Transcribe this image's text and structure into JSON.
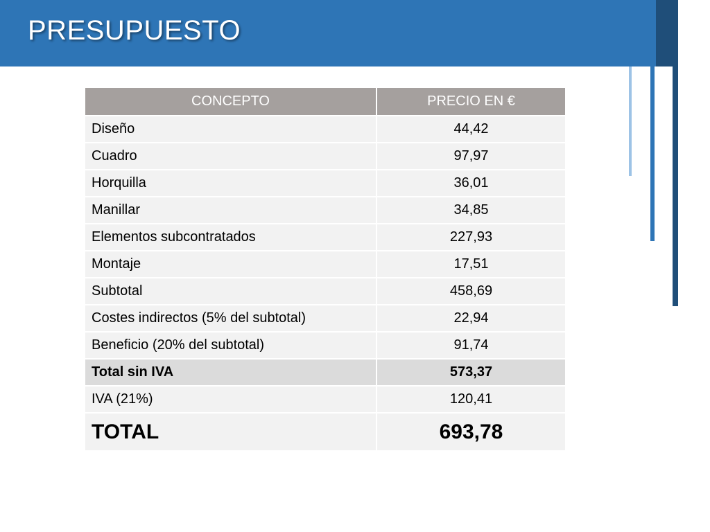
{
  "slide": {
    "title": "PRESUPUESTO",
    "colors": {
      "header": "#2e75b6",
      "accent_dark": "#1f4e79",
      "accent_light": "#9dc3e6",
      "table_header": "#a5a09e",
      "row_bg": "#f2f2f2",
      "row_highlight_bg": "#dbdbdb"
    }
  },
  "table": {
    "headers": {
      "concept": "CONCEPTO",
      "price": "PRECIO EN €"
    },
    "rows": [
      {
        "concept": "Diseño",
        "price": "44,42"
      },
      {
        "concept": "Cuadro",
        "price": "97,97"
      },
      {
        "concept": "Horquilla",
        "price": "36,01"
      },
      {
        "concept": "Manillar",
        "price": "34,85"
      },
      {
        "concept": "Elementos subcontratados",
        "price": "227,93"
      },
      {
        "concept": "Montaje",
        "price": "17,51"
      },
      {
        "concept": "Subtotal",
        "price": "458,69"
      },
      {
        "concept": "Costes indirectos (5% del subtotal)",
        "price": "22,94"
      },
      {
        "concept": "Beneficio (20% del subtotal)",
        "price": "91,74"
      },
      {
        "concept": "Total sin IVA",
        "price": "573,37"
      },
      {
        "concept": "IVA (21%)",
        "price": "120,41"
      },
      {
        "concept": "TOTAL",
        "price": "693,78"
      }
    ]
  }
}
